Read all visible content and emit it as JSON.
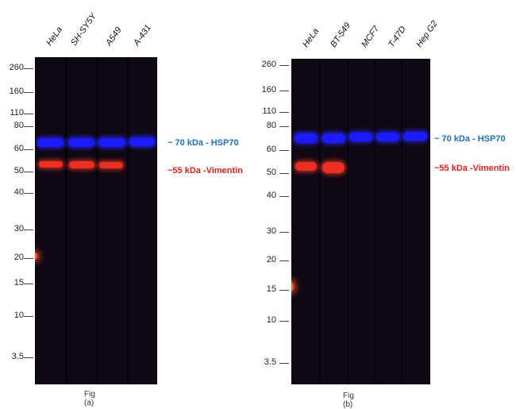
{
  "panel_a": {
    "lanes": [
      "HeLa",
      "SH-SY5Y",
      "A549",
      "A-431"
    ],
    "mw_markers": [
      "260",
      "160",
      "110",
      "80",
      "60",
      "50",
      "40",
      "30",
      "20",
      "15",
      "10",
      "3.5"
    ],
    "hsp70_annotation": "~ 70 kDa - HSP70",
    "vimentin_annotation": "~55 kDa -Vimentin",
    "caption": "Fig (a)"
  },
  "panel_b": {
    "lanes": [
      "HeLa",
      "BT-549",
      "MCF7",
      "T-47D",
      "Hep G2"
    ],
    "mw_markers": [
      "260",
      "160",
      "110",
      "80",
      "60",
      "50",
      "40",
      "30",
      "20",
      "15",
      "10",
      "3.5"
    ],
    "hsp70_annotation": "~ 70 kDa - HSP70",
    "vimentin_annotation": "~55 kDa -Vimentin",
    "caption": "Fig (b)"
  },
  "colors": {
    "hsp70": "#1a1cff",
    "vimentin": "#ee2e22",
    "blot_background": "#04040e"
  }
}
